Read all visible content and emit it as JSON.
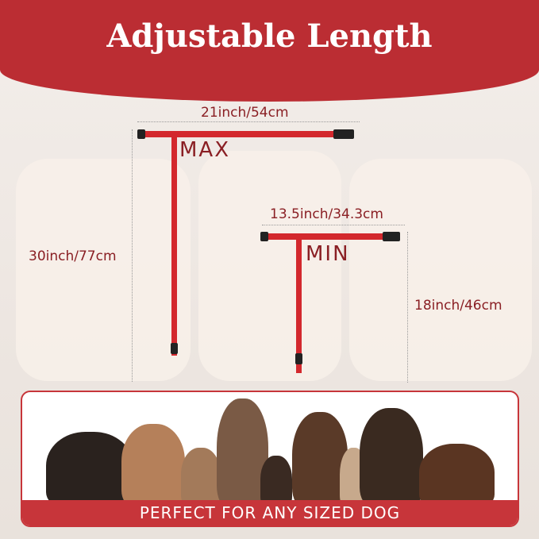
{
  "title": "Adjustable Length",
  "max": {
    "label": "MAX",
    "width": "21inch/54cm",
    "height": "30inch/77cm"
  },
  "min": {
    "label": "MIN",
    "width": "13.5inch/34.3cm",
    "height": "18inch/46cm"
  },
  "caption": "PERFECT FOR ANY SIZED DOG",
  "colors": {
    "brand_red": "#bb2d33",
    "strap_red": "#d3282d",
    "text_red": "#8a1f24"
  }
}
